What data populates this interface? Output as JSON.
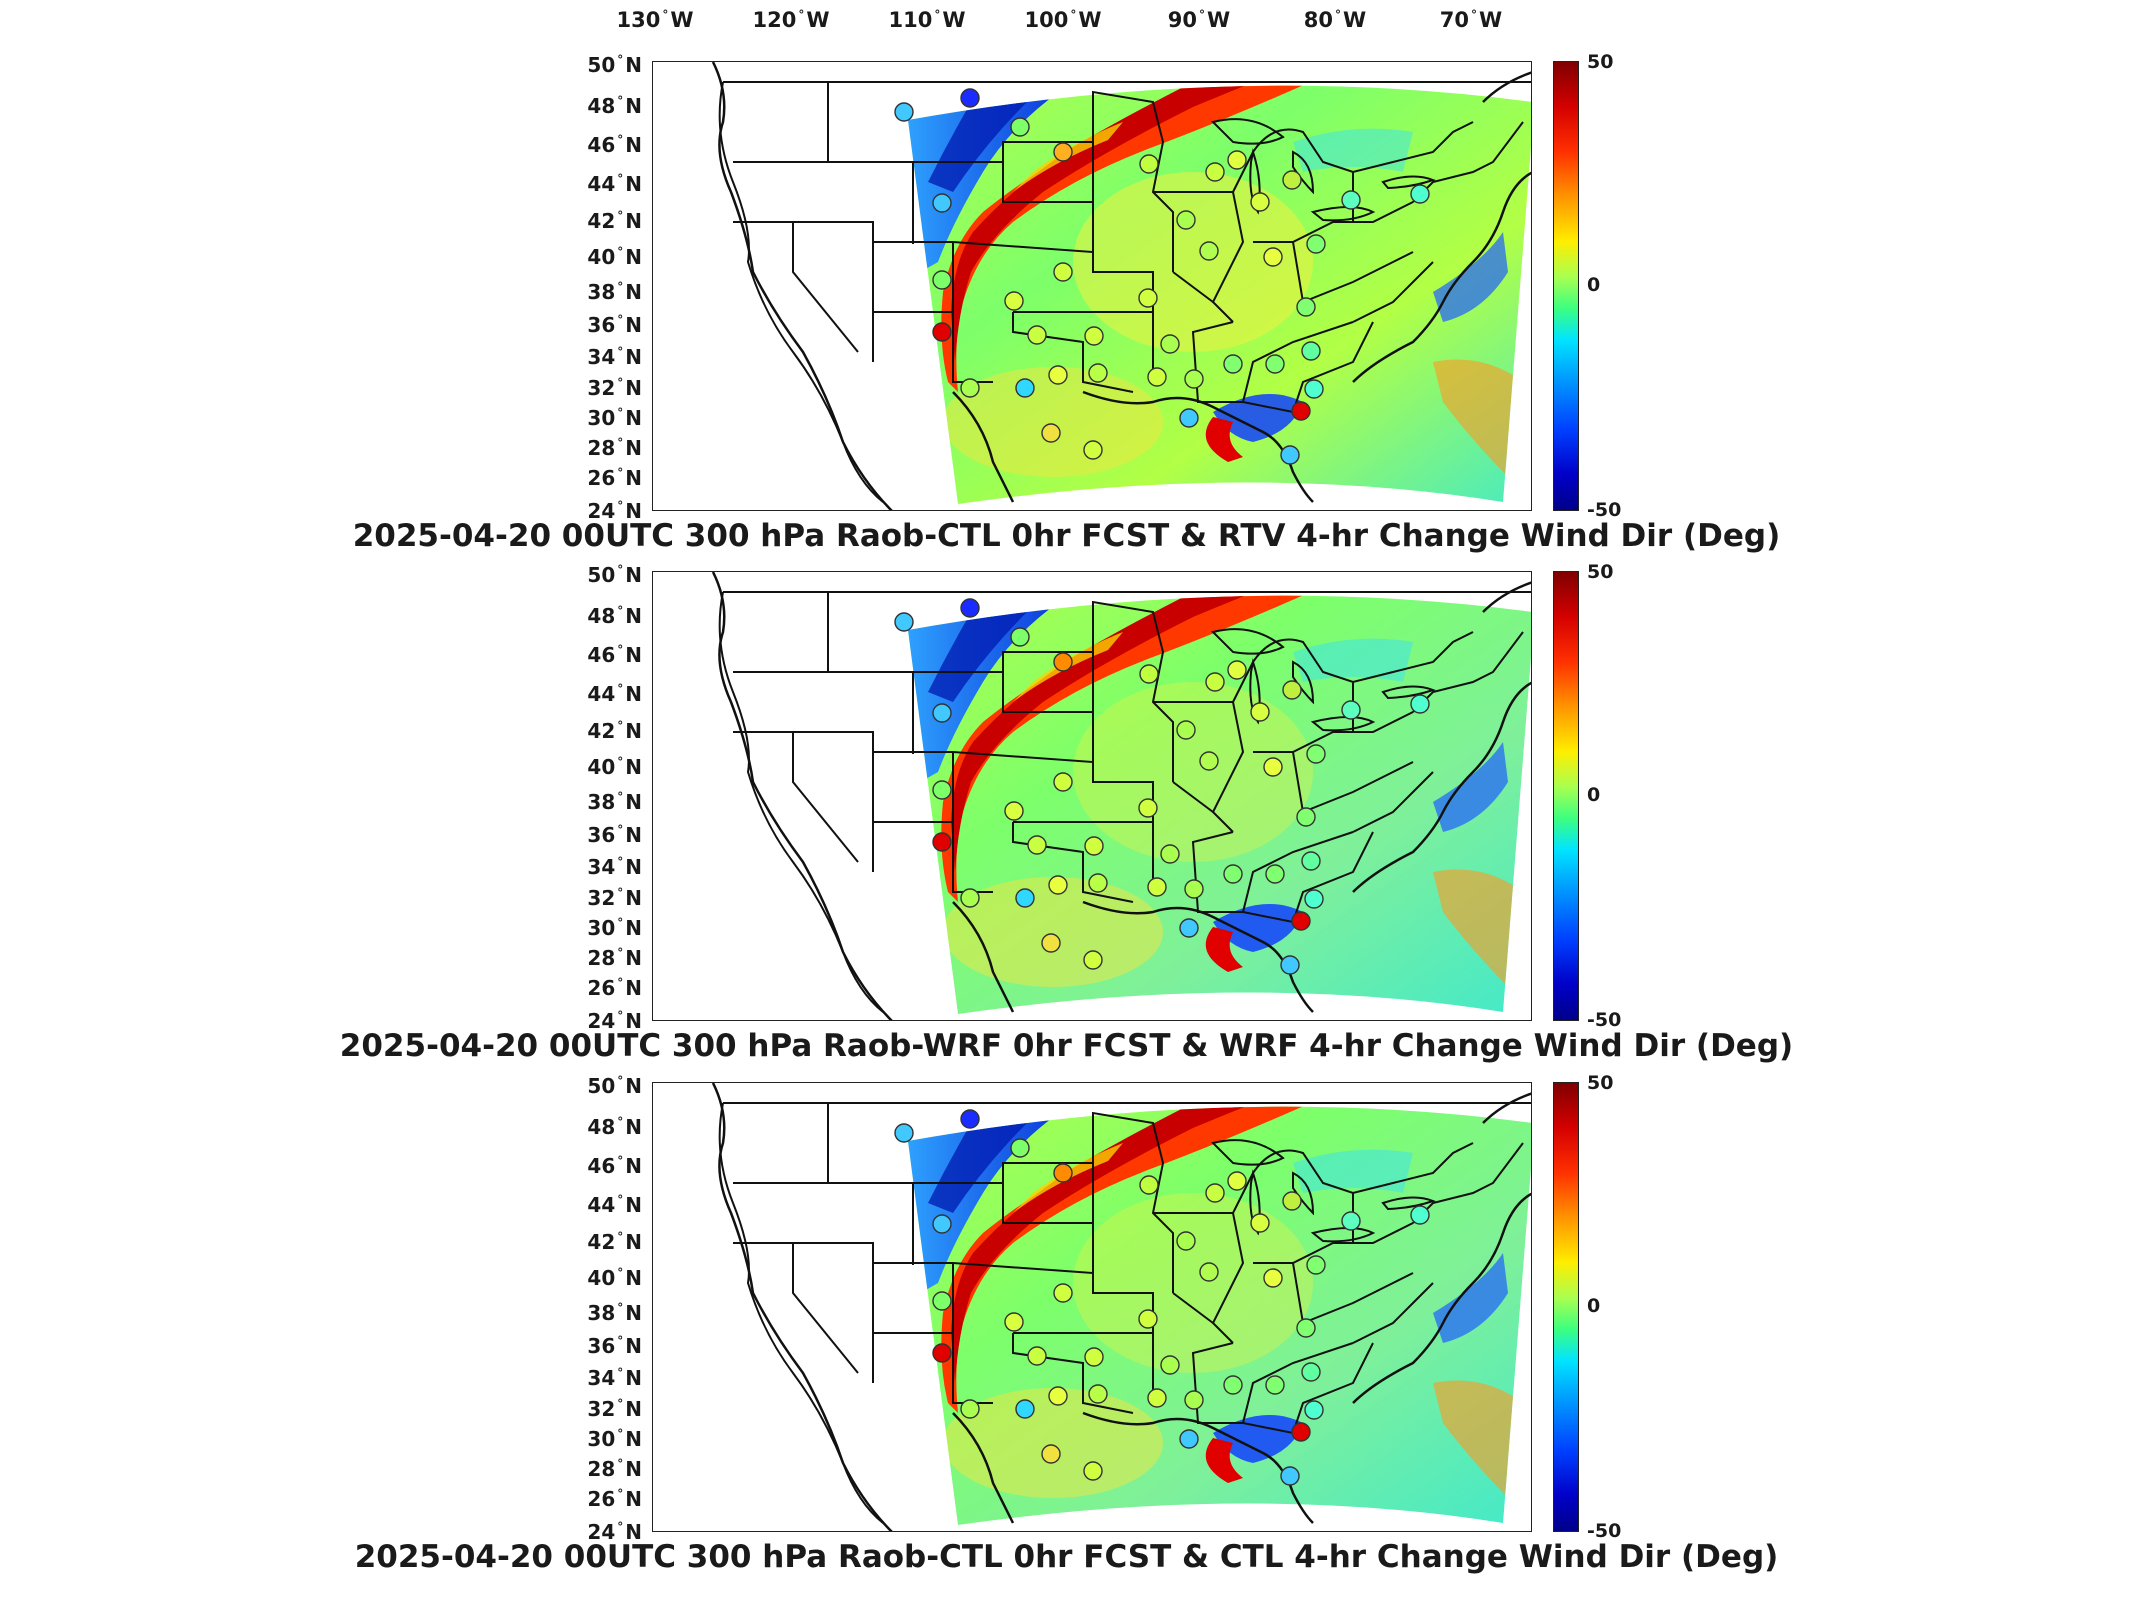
{
  "longitude_labels": [
    {
      "deg": "130",
      "hemi": "W"
    },
    {
      "deg": "120",
      "hemi": "W"
    },
    {
      "deg": "110",
      "hemi": "W"
    },
    {
      "deg": "100",
      "hemi": "W"
    },
    {
      "deg": "90",
      "hemi": "W"
    },
    {
      "deg": "80",
      "hemi": "W"
    },
    {
      "deg": "70",
      "hemi": "W"
    }
  ],
  "latitude_labels": [
    {
      "deg": "50",
      "hemi": "N"
    },
    {
      "deg": "48",
      "hemi": "N"
    },
    {
      "deg": "46",
      "hemi": "N"
    },
    {
      "deg": "44",
      "hemi": "N"
    },
    {
      "deg": "42",
      "hemi": "N"
    },
    {
      "deg": "40",
      "hemi": "N"
    },
    {
      "deg": "38",
      "hemi": "N"
    },
    {
      "deg": "36",
      "hemi": "N"
    },
    {
      "deg": "34",
      "hemi": "N"
    },
    {
      "deg": "32",
      "hemi": "N"
    },
    {
      "deg": "30",
      "hemi": "N"
    },
    {
      "deg": "28",
      "hemi": "N"
    },
    {
      "deg": "26",
      "hemi": "N"
    },
    {
      "deg": "24",
      "hemi": "N"
    }
  ],
  "colorbar": {
    "max_label": "50",
    "mid_label": "0",
    "min_label": "-50",
    "range": [
      -50,
      50
    ],
    "colors": [
      "#800000",
      "#ff3000",
      "#ffee00",
      "#3cff80",
      "#00e4ff",
      "#0040ff",
      "#00008a"
    ]
  },
  "panels": [
    {
      "title": "2025-04-20 00UTC 300 hPa Raob-CTL 0hr FCST & RTV 4-hr Change Wind Dir (Deg)"
    },
    {
      "title": "2025-04-20 00UTC 300 hPa Raob-WRF 0hr FCST & WRF 4-hr Change Wind Dir (Deg)"
    },
    {
      "title": "2025-04-20 00UTC 300 hPa Raob-CTL 0hr FCST & CTL 4-hr Change Wind Dir (Deg)"
    }
  ]
}
